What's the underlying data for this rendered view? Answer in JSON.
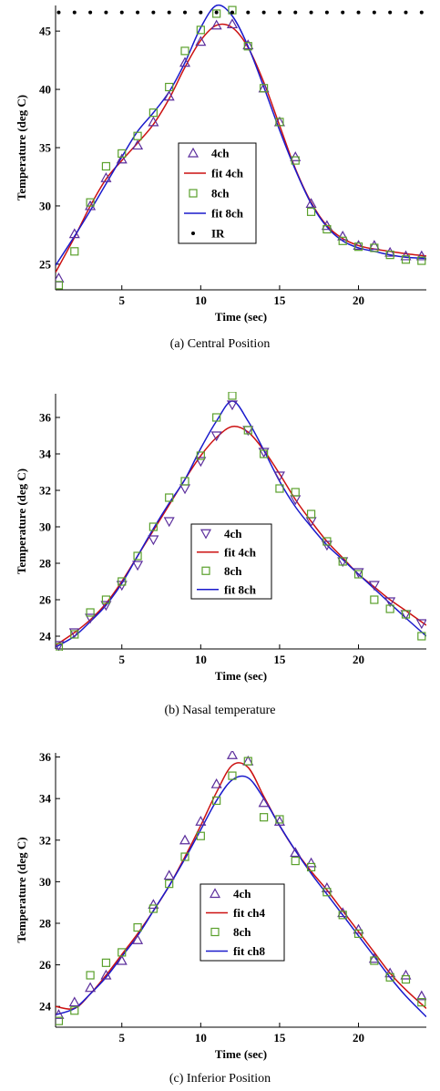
{
  "chart_data": [
    {
      "type": "line",
      "caption": "(a) Central Position",
      "xlabel": "Time (sec)",
      "ylabel": "Temperature (deg C)",
      "xlim": [
        0.8,
        24.3
      ],
      "ylim": [
        22.8,
        47.2
      ],
      "xticks": [
        5,
        10,
        15,
        20
      ],
      "yticks": [
        25,
        30,
        35,
        40,
        45
      ],
      "legend_position": "center",
      "series": [
        {
          "name": "4ch",
          "kind": "marker",
          "marker": "triangle-up",
          "color": "#5b2d9c",
          "x": [
            1,
            2,
            3,
            4,
            5,
            6,
            7,
            8,
            9,
            10,
            11,
            12,
            13,
            14,
            15,
            16,
            17,
            18,
            19,
            20,
            21,
            22,
            23,
            24
          ],
          "y": [
            23.8,
            27.6,
            30.0,
            32.4,
            34.0,
            35.2,
            37.2,
            39.4,
            42.3,
            44.1,
            45.5,
            45.6,
            43.8,
            40.1,
            37.2,
            34.2,
            30.2,
            28.3,
            27.4,
            26.6,
            26.6,
            26.0,
            25.7,
            25.7
          ]
        },
        {
          "name": "fit 4ch",
          "kind": "line",
          "color": "#cc1111",
          "x": [
            0.8,
            2,
            3,
            4,
            5,
            6,
            7,
            8,
            9,
            10,
            11,
            12,
            13,
            14,
            15,
            16,
            17,
            18,
            19,
            20,
            21,
            22,
            23,
            24.3
          ],
          "y": [
            24.3,
            27.3,
            30.0,
            32.3,
            33.9,
            35.4,
            37.0,
            39.2,
            41.9,
            44.2,
            45.5,
            45.3,
            43.6,
            40.6,
            36.9,
            33.2,
            30.3,
            28.3,
            27.2,
            26.6,
            26.3,
            26.1,
            25.9,
            25.7
          ]
        },
        {
          "name": "8ch",
          "kind": "marker",
          "marker": "square",
          "color": "#5aa02c",
          "x": [
            1,
            2,
            3,
            4,
            5,
            6,
            7,
            8,
            9,
            10,
            11,
            12,
            13,
            14,
            15,
            16,
            17,
            18,
            19,
            20,
            21,
            22,
            23,
            24
          ],
          "y": [
            23.2,
            26.1,
            30.3,
            33.4,
            34.5,
            36.0,
            38.0,
            40.2,
            43.3,
            45.1,
            46.5,
            46.8,
            43.7,
            40.1,
            37.2,
            33.9,
            29.5,
            28.0,
            27.0,
            26.5,
            26.4,
            25.8,
            25.4,
            25.3
          ]
        },
        {
          "name": "fit 8ch",
          "kind": "line",
          "color": "#1a1acc",
          "x": [
            0.8,
            2,
            3,
            4,
            5,
            6,
            7,
            8,
            9,
            10,
            11,
            12,
            13,
            14,
            15,
            16,
            17,
            18,
            19,
            20,
            21,
            22,
            23,
            24.3
          ],
          "y": [
            24.9,
            27.4,
            29.6,
            31.9,
            34.2,
            36.4,
            38.0,
            39.8,
            42.3,
            45.3,
            47.2,
            46.3,
            43.7,
            40.2,
            36.5,
            33.1,
            30.2,
            28.2,
            27.0,
            26.4,
            26.1,
            25.8,
            25.6,
            25.5
          ]
        },
        {
          "name": "IR",
          "kind": "marker",
          "marker": "dot",
          "color": "#000000",
          "x": [
            1,
            2,
            3,
            4,
            5,
            6,
            7,
            8,
            9,
            10,
            11,
            12,
            13,
            14,
            15,
            16,
            17,
            18,
            19,
            20,
            21,
            22,
            23,
            24
          ],
          "y": [
            46.6,
            46.6,
            46.6,
            46.6,
            46.6,
            46.6,
            46.6,
            46.6,
            46.6,
            46.6,
            46.6,
            46.6,
            46.6,
            46.6,
            46.6,
            46.6,
            46.6,
            46.6,
            46.6,
            46.6,
            46.6,
            46.6,
            46.6,
            46.6
          ]
        }
      ]
    },
    {
      "type": "line",
      "caption": "(b) Nasal temperature",
      "xlabel": "Time (sec)",
      "ylabel": "Temperature (deg C)",
      "xlim": [
        0.8,
        24.3
      ],
      "ylim": [
        23.3,
        37.3
      ],
      "xticks": [
        5,
        10,
        15,
        20
      ],
      "yticks": [
        24,
        26,
        28,
        30,
        32,
        34,
        36
      ],
      "legend_position": "center",
      "series": [
        {
          "name": "4ch",
          "kind": "marker",
          "marker": "triangle-down",
          "color": "#5b2d9c",
          "x": [
            1,
            2,
            3,
            4,
            5,
            6,
            7,
            8,
            9,
            10,
            11,
            12,
            13,
            14,
            15,
            16,
            17,
            18,
            19,
            20,
            21,
            22,
            23,
            24
          ],
          "y": [
            23.5,
            24.2,
            25.0,
            25.7,
            26.8,
            27.9,
            29.3,
            30.3,
            32.1,
            33.6,
            35.0,
            36.7,
            35.3,
            34.1,
            32.8,
            31.5,
            30.3,
            29.0,
            28.1,
            27.5,
            26.8,
            25.9,
            25.2,
            24.7
          ]
        },
        {
          "name": "fit 4ch",
          "kind": "line",
          "color": "#cc1111",
          "x": [
            0.8,
            2,
            3,
            4,
            5,
            6,
            7,
            8,
            9,
            10,
            11,
            12,
            13,
            14,
            15,
            16,
            17,
            18,
            19,
            20,
            21,
            22,
            23,
            24.3
          ],
          "y": [
            23.5,
            24.2,
            24.9,
            25.8,
            27.0,
            28.4,
            29.8,
            31.2,
            32.6,
            33.9,
            34.9,
            35.5,
            35.2,
            34.2,
            32.9,
            31.5,
            30.3,
            29.2,
            28.3,
            27.4,
            26.7,
            26.0,
            25.4,
            24.6
          ]
        },
        {
          "name": "8ch",
          "kind": "marker",
          "marker": "square",
          "color": "#5aa02c",
          "x": [
            1,
            2,
            3,
            4,
            5,
            6,
            7,
            8,
            9,
            10,
            11,
            12,
            13,
            14,
            15,
            16,
            17,
            18,
            19,
            20,
            21,
            22,
            23,
            24
          ],
          "y": [
            23.4,
            24.1,
            25.3,
            26.0,
            27.0,
            28.4,
            30.0,
            31.6,
            32.5,
            33.9,
            36.0,
            37.2,
            35.3,
            34.0,
            32.1,
            31.9,
            30.7,
            29.2,
            28.1,
            27.4,
            26.0,
            25.5,
            25.2,
            24.0
          ]
        },
        {
          "name": "fit 8ch",
          "kind": "line",
          "color": "#1a1acc",
          "x": [
            0.8,
            2,
            3,
            4,
            5,
            6,
            7,
            8,
            9,
            10,
            11,
            12,
            13,
            14,
            15,
            16,
            17,
            18,
            19,
            20,
            21,
            22,
            23,
            24.3
          ],
          "y": [
            23.4,
            24.0,
            24.8,
            25.7,
            26.9,
            28.4,
            29.9,
            31.3,
            32.6,
            34.3,
            35.8,
            36.9,
            35.8,
            34.2,
            32.5,
            31.1,
            30.0,
            29.0,
            28.2,
            27.4,
            26.6,
            25.8,
            25.0,
            24.0
          ]
        }
      ]
    },
    {
      "type": "line",
      "caption": "(c) Inferior Position",
      "xlabel": "Time (sec)",
      "ylabel": "Temperature (deg C)",
      "xlim": [
        0.8,
        24.3
      ],
      "ylim": [
        23.0,
        36.2
      ],
      "xticks": [
        5,
        10,
        15,
        20
      ],
      "yticks": [
        24,
        26,
        28,
        30,
        32,
        34,
        36
      ],
      "legend_position": "center-right",
      "series": [
        {
          "name": "4ch",
          "kind": "marker",
          "marker": "triangle-up",
          "color": "#5b2d9c",
          "x": [
            1,
            2,
            3,
            4,
            5,
            6,
            7,
            8,
            9,
            10,
            11,
            12,
            13,
            14,
            15,
            16,
            17,
            18,
            19,
            20,
            21,
            22,
            23,
            24
          ],
          "y": [
            23.6,
            24.2,
            24.9,
            25.5,
            26.2,
            27.2,
            28.9,
            30.3,
            32.0,
            32.9,
            34.7,
            36.1,
            35.8,
            33.8,
            32.9,
            31.4,
            30.9,
            29.7,
            28.5,
            27.7,
            26.3,
            25.6,
            25.5,
            24.5
          ]
        },
        {
          "name": "fit ch4",
          "kind": "line",
          "color": "#cc1111",
          "x": [
            0.8,
            2,
            3,
            4,
            5,
            6,
            7,
            8,
            9,
            10,
            11,
            12,
            13,
            14,
            15,
            16,
            17,
            18,
            19,
            20,
            21,
            22,
            23,
            24.3
          ],
          "y": [
            24.0,
            23.9,
            24.6,
            25.5,
            26.5,
            27.5,
            28.6,
            29.8,
            31.2,
            32.7,
            34.3,
            35.6,
            35.5,
            34.1,
            32.7,
            31.5,
            30.5,
            29.6,
            28.6,
            27.6,
            26.6,
            25.6,
            24.8,
            23.9
          ]
        },
        {
          "name": "8ch",
          "kind": "marker",
          "marker": "square",
          "color": "#5aa02c",
          "x": [
            1,
            2,
            3,
            4,
            5,
            6,
            7,
            8,
            9,
            10,
            11,
            12,
            13,
            14,
            15,
            16,
            17,
            18,
            19,
            20,
            21,
            22,
            23,
            24
          ],
          "y": [
            23.3,
            23.8,
            25.5,
            26.1,
            26.6,
            27.8,
            28.7,
            29.9,
            31.2,
            32.2,
            33.9,
            35.1,
            35.8,
            33.1,
            33.0,
            31.0,
            30.7,
            29.5,
            28.4,
            27.5,
            26.2,
            25.4,
            25.3,
            24.2
          ]
        },
        {
          "name": "fit ch8",
          "kind": "line",
          "color": "#1a1acc",
          "x": [
            0.8,
            2,
            3,
            4,
            5,
            6,
            7,
            8,
            9,
            10,
            11,
            12,
            13,
            14,
            15,
            16,
            17,
            18,
            19,
            20,
            21,
            22,
            23,
            24.3
          ],
          "y": [
            23.6,
            23.9,
            24.6,
            25.4,
            26.4,
            27.4,
            28.6,
            29.8,
            31.1,
            32.5,
            33.9,
            34.9,
            35.0,
            34.0,
            32.7,
            31.5,
            30.4,
            29.4,
            28.4,
            27.4,
            26.4,
            25.4,
            24.5,
            23.5
          ]
        }
      ]
    }
  ]
}
